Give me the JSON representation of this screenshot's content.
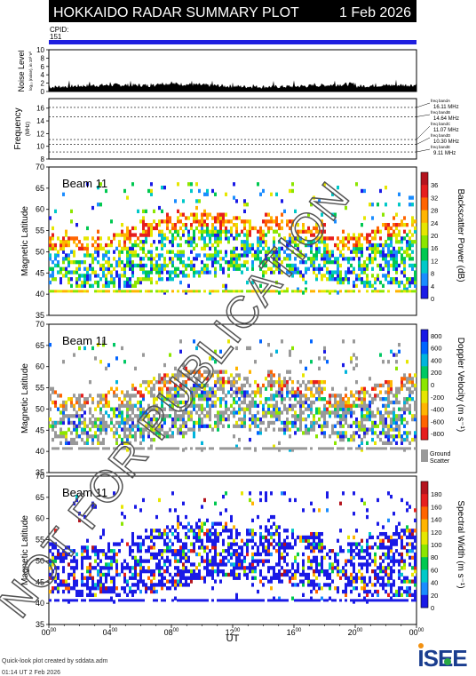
{
  "header": {
    "title": "HOKKAIDO RADAR SUMMARY PLOT",
    "date": "1 Feb 2026",
    "cpid_label": "CPID:",
    "cpid_value": "151"
  },
  "noise_panel": {
    "ylabel": "Noise Level",
    "ylabel_sub": "log₁₀ (noise), in 10³ V²",
    "yticks": [
      "0",
      "2",
      "4",
      "6",
      "8",
      "10"
    ]
  },
  "freq_panel": {
    "ylabel": "Frequency",
    "unit": "(MHz)",
    "yticks": [
      "8",
      "10",
      "12",
      "14",
      "16"
    ],
    "bands": [
      {
        "name": "freq bandA",
        "value": "16.11 MHz",
        "mhz": 16.11
      },
      {
        "name": "freq bandB",
        "value": "14.64 MHz",
        "mhz": 14.64
      },
      {
        "name": "freq bandC",
        "value": "11.07 MHz",
        "mhz": 11.07
      },
      {
        "name": "freq bandD",
        "value": "10.30 MHz",
        "mhz": 10.3
      },
      {
        "name": "freq bandE",
        "value": "9.11 MHz",
        "mhz": 9.11
      }
    ]
  },
  "panels": [
    {
      "beam": "Beam 11",
      "ylabel": "Magnetic Latitude",
      "colorbar_label": "Backscatter Power (dB)",
      "colorbar_ticks": [
        "0",
        "4",
        "8",
        "12",
        "16",
        "20",
        "24",
        "28",
        "32",
        "36"
      ],
      "colorbar_colors": [
        "#1a1ae6",
        "#1a8cff",
        "#00c8c8",
        "#00c850",
        "#8ce600",
        "#e6e600",
        "#ffb400",
        "#ff6400",
        "#e61e1e",
        "#b4141e"
      ]
    },
    {
      "beam": "Beam 11",
      "ylabel": "Magnetic Latitude",
      "colorbar_label": "Doppler Velocity (m s⁻¹)",
      "colorbar_ticks": [
        "800",
        "600",
        "400",
        "200",
        "0",
        "-200",
        "-400",
        "-600",
        "-800"
      ],
      "colorbar_colors": [
        "#1a1ae6",
        "#0064ff",
        "#00b4dc",
        "#00c864",
        "#8ce600",
        "#e6e600",
        "#ffb400",
        "#ff6400",
        "#e61e1e"
      ],
      "ground_scatter_label": "Ground",
      "ground_scatter_label2": "Scatter",
      "ground_scatter_color": "#999999"
    },
    {
      "beam": "Beam 11",
      "ylabel": "Magnetic Latitude",
      "colorbar_label": "Spectral Width (m s⁻¹)",
      "colorbar_ticks": [
        "0",
        "20",
        "40",
        "60",
        "80",
        "100",
        "120",
        "140",
        "160",
        "180"
      ],
      "colorbar_colors": [
        "#1a1ae6",
        "#1a8cff",
        "#00c8c8",
        "#00c850",
        "#8ce600",
        "#e6e600",
        "#ffb400",
        "#ff6400",
        "#e61e1e",
        "#b4141e"
      ]
    }
  ],
  "lat_ticks": [
    "35",
    "40",
    "45",
    "50",
    "55",
    "60",
    "65",
    "70"
  ],
  "x_ticks": [
    {
      "h": "00",
      "m": "00"
    },
    {
      "h": "04",
      "m": "00"
    },
    {
      "h": "08",
      "m": "00"
    },
    {
      "h": "12",
      "m": "00"
    },
    {
      "h": "16",
      "m": "00"
    },
    {
      "h": "20",
      "m": "00"
    },
    {
      "h": "00",
      "m": "00"
    }
  ],
  "x_label": "UT",
  "footer": {
    "line1": "Quick-look plot created by sddata.adm",
    "line2": "01:14 UT  2 Feb 2026",
    "logo": "ISEE"
  },
  "watermark": "NOT FOR PUBLICATION",
  "chart_data": [
    {
      "type": "line",
      "title": "Noise Level",
      "ylim": [
        0,
        10
      ],
      "xlim_hours": [
        0,
        24
      ]
    },
    {
      "type": "line",
      "title": "Frequency",
      "ylim": [
        8,
        17
      ],
      "values_mhz": [
        16.11,
        14.64,
        11.07,
        10.3,
        9.11
      ]
    },
    {
      "type": "heatmap",
      "title": "Backscatter Power (dB)",
      "xlim_hours": [
        0,
        24
      ],
      "ylim": [
        35,
        70
      ],
      "colorbar_range": [
        0,
        40
      ]
    },
    {
      "type": "heatmap",
      "title": "Doppler Velocity (m s⁻¹)",
      "xlim_hours": [
        0,
        24
      ],
      "ylim": [
        35,
        70
      ],
      "colorbar_range": [
        -800,
        800
      ]
    },
    {
      "type": "heatmap",
      "title": "Spectral Width (m s⁻¹)",
      "xlim_hours": [
        0,
        24
      ],
      "ylim": [
        35,
        70
      ],
      "colorbar_range": [
        0,
        200
      ]
    }
  ]
}
